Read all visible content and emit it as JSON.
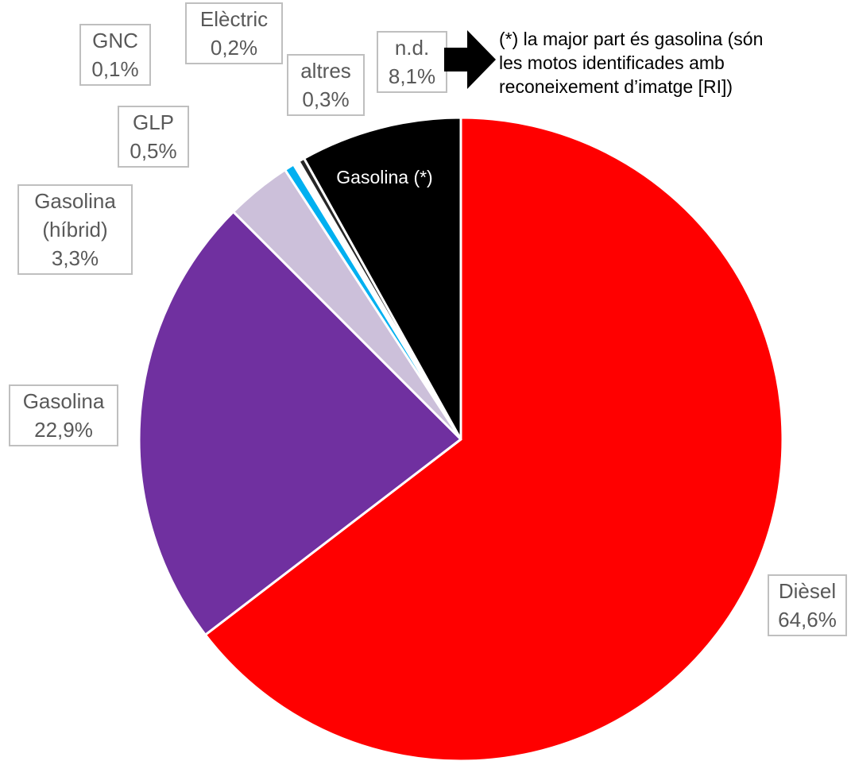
{
  "chart_data": {
    "type": "pie",
    "title": "",
    "start_angle_deg": 0,
    "direction": "clockwise",
    "slices": [
      {
        "label": "Dièsel",
        "value": 64.6,
        "value_label": "64,6%",
        "color": "#ff0000"
      },
      {
        "label": "Gasolina",
        "value": 22.9,
        "value_label": "22,9%",
        "color": "#7030a0"
      },
      {
        "label": "Gasolina (híbrid)",
        "label_lines": [
          "Gasolina",
          "(híbrid)"
        ],
        "value": 3.3,
        "value_label": "3,3%",
        "color": "#ccc0da"
      },
      {
        "label": "GLP",
        "value": 0.5,
        "value_label": "0,5%",
        "color": "#00b0f0"
      },
      {
        "label": "GNC",
        "value": 0.1,
        "value_label": "0,1%",
        "color": "#d9d9d9"
      },
      {
        "label": "Elèctric",
        "value": 0.2,
        "value_label": "0,2%",
        "color": "#ffffff"
      },
      {
        "label": "altres",
        "value": 0.3,
        "value_label": "0,3%",
        "color": "#262626"
      },
      {
        "label": "n.d.",
        "value": 8.1,
        "value_label": "8,1%",
        "color": "#000000",
        "inner_label": "Gasolina (*)"
      }
    ],
    "annotation": {
      "lines": [
        "(*) la major part és gasolina (són",
        "les motos identificades amb",
        "reconeixement d’imatge [RI])"
      ]
    }
  }
}
